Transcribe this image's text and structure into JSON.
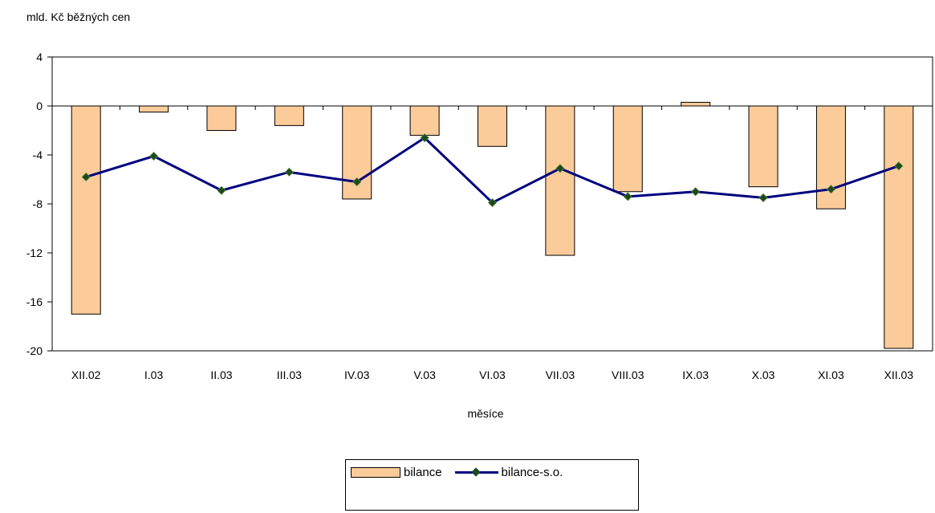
{
  "chart_data": {
    "type": "bar",
    "unit_label": "mld. Kč běžných cen",
    "xlabel": "měsíce",
    "ylabel": "",
    "ylim": [
      -20,
      4
    ],
    "yticks": [
      4,
      0,
      -4,
      -8,
      -12,
      -16,
      -20
    ],
    "categories": [
      "XII.02",
      "I.03",
      "II.03",
      "III.03",
      "IV.03",
      "V.03",
      "VI.03",
      "VII.03",
      "VIII.03",
      "IX.03",
      "X.03",
      "XI.03",
      "XII.03"
    ],
    "series": [
      {
        "name": "bilance",
        "kind": "bar",
        "color": "#FCCB9A",
        "values": [
          -17.0,
          -0.5,
          -2.0,
          -1.6,
          -7.6,
          -2.4,
          -3.3,
          -12.2,
          -7.0,
          0.3,
          -6.6,
          -8.4,
          -19.8
        ]
      },
      {
        "name": "bilance-s.o.",
        "kind": "line",
        "color": "#000080",
        "marker_color": "#1C4A1C",
        "values": [
          -5.8,
          -4.1,
          -6.9,
          -5.4,
          -6.2,
          -2.6,
          -7.9,
          -5.1,
          -7.4,
          -7.0,
          -7.5,
          -6.8,
          -4.9
        ]
      }
    ],
    "grid": false,
    "legend_position": "bottom"
  }
}
